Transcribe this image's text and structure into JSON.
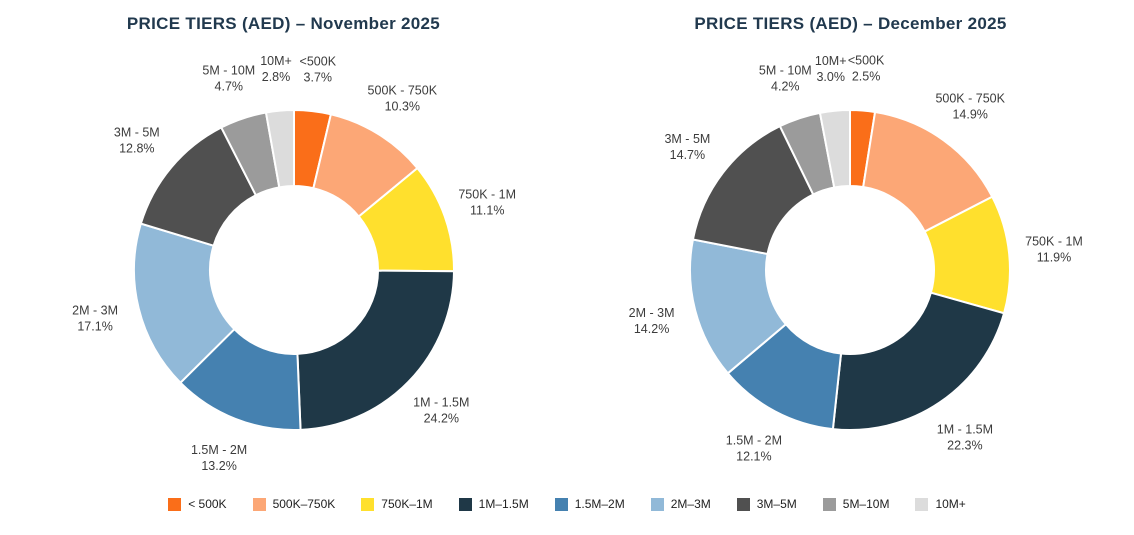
{
  "palette": [
    "#FA6E19",
    "#FCA776",
    "#FFE02D",
    "#1F3847",
    "#4581B0",
    "#91B9D8",
    "#505050",
    "#9B9B9B",
    "#DCDCDC"
  ],
  "chart_data": [
    {
      "type": "pie",
      "subtype": "donut",
      "title": "PRICE TIERS (AED) – November 2025",
      "categories": [
        "<500K",
        "500K - 750K",
        "750K - 1M",
        "1M - 1.5M",
        "1.5M - 2M",
        "2M - 3M",
        "3M - 5M",
        "5M - 10M",
        "10M+"
      ],
      "values": [
        3.7,
        10.3,
        11.1,
        24.2,
        13.2,
        17.1,
        12.8,
        4.7,
        2.8
      ],
      "value_labels": [
        "3.7%",
        "10.3%",
        "11.1%",
        "24.2%",
        "13.2%",
        "17.1%",
        "12.8%",
        "4.7%",
        "2.8%"
      ],
      "unit": "%",
      "start_angle_deg": 0,
      "direction": "clockwise",
      "label_position": "outside",
      "legend_position": "bottom"
    },
    {
      "type": "pie",
      "subtype": "donut",
      "title": "PRICE TIERS (AED) – December 2025",
      "categories": [
        "<500K",
        "500K - 750K",
        "750K - 1M",
        "1M - 1.5M",
        "1.5M - 2M",
        "2M - 3M",
        "3M - 5M",
        "5M - 10M",
        "10M+"
      ],
      "values": [
        2.5,
        14.9,
        11.9,
        22.3,
        12.1,
        14.2,
        14.7,
        4.2,
        3.0
      ],
      "value_labels": [
        "2.5%",
        "14.9%",
        "11.9%",
        "22.3%",
        "12.1%",
        "14.2%",
        "14.7%",
        "4.2%",
        "3.0%"
      ],
      "unit": "%",
      "start_angle_deg": 0,
      "direction": "clockwise",
      "label_position": "outside",
      "legend_position": "bottom"
    }
  ],
  "legend": {
    "items": [
      {
        "label": "< 500K",
        "color": "#FA6E19"
      },
      {
        "label": "500K–750K",
        "color": "#FCA776"
      },
      {
        "label": "750K–1M",
        "color": "#FFE02D"
      },
      {
        "label": "1M–1.5M",
        "color": "#1F3847"
      },
      {
        "label": "1.5M–2M",
        "color": "#4581B0"
      },
      {
        "label": "2M–3M",
        "color": "#91B9D8"
      },
      {
        "label": "3M–5M",
        "color": "#505050"
      },
      {
        "label": "5M–10M",
        "color": "#9B9B9B"
      },
      {
        "label": "10M+",
        "color": "#DCDCDC"
      }
    ]
  }
}
